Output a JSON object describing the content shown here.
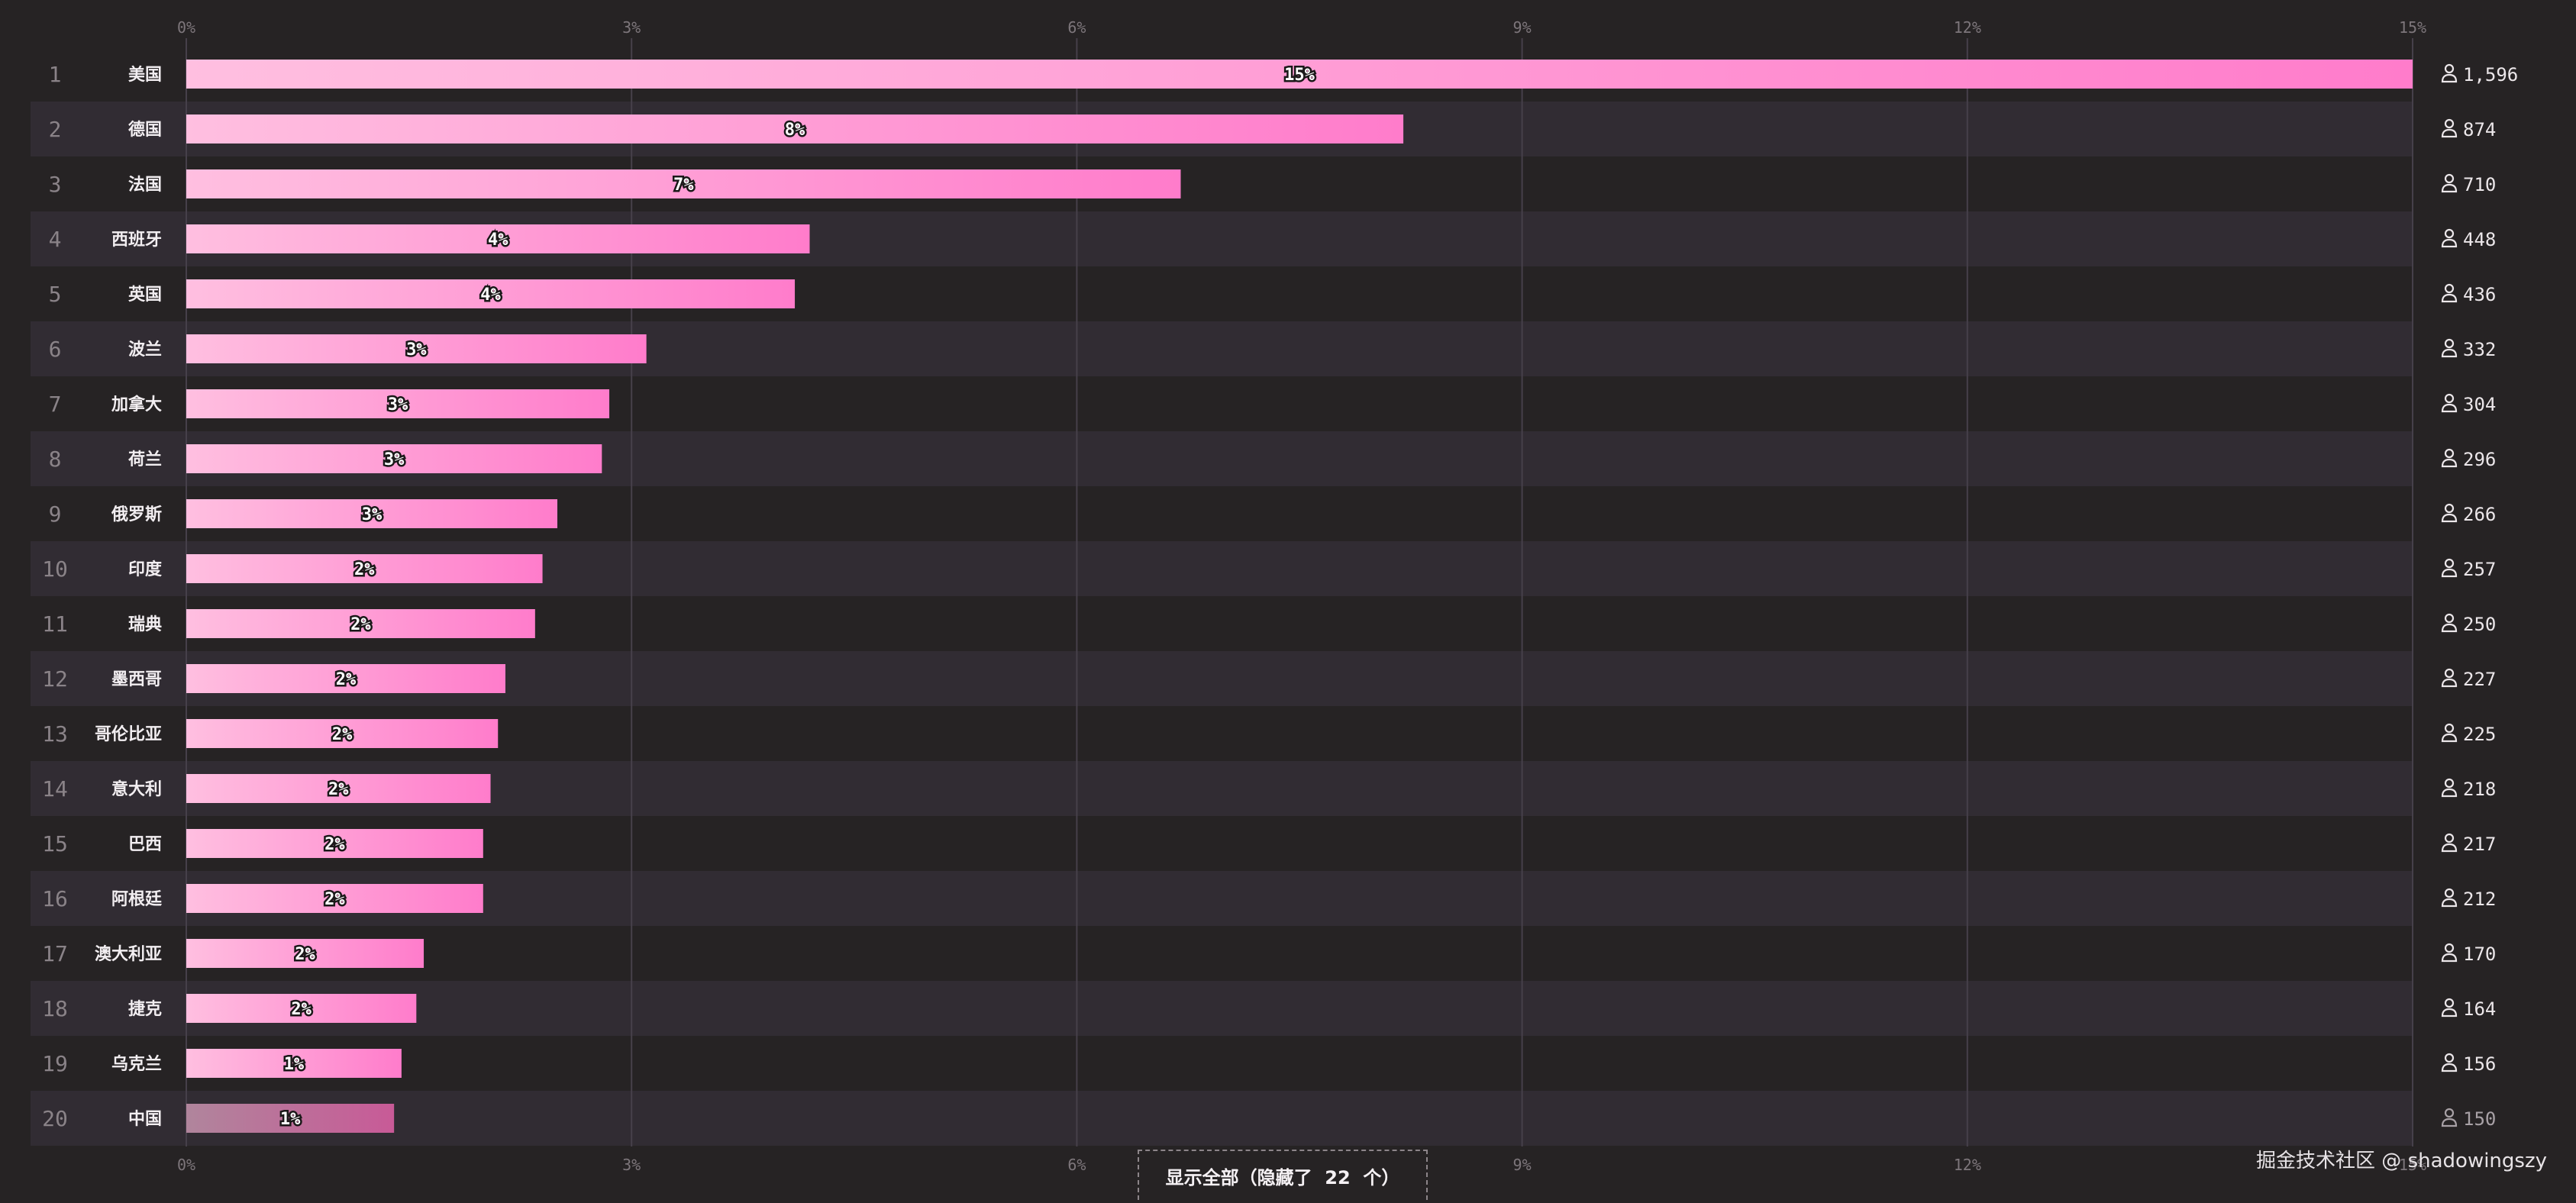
{
  "chart_data": {
    "type": "bar",
    "orientation": "horizontal",
    "xlim": [
      0,
      15
    ],
    "x_ticks": [
      "0%",
      "3%",
      "6%",
      "9%",
      "12%",
      "15%"
    ],
    "x_tick_values": [
      0,
      3,
      6,
      9,
      12,
      15
    ],
    "grid": true,
    "categories": [
      "美国",
      "德国",
      "法国",
      "西班牙",
      "英国",
      "波兰",
      "加拿大",
      "荷兰",
      "俄罗斯",
      "印度",
      "瑞典",
      "墨西哥",
      "哥伦比亚",
      "意大利",
      "巴西",
      "阿根廷",
      "澳大利亚",
      "捷克",
      "乌克兰",
      "中国"
    ],
    "ranks": [
      "1",
      "2",
      "3",
      "4",
      "5",
      "6",
      "7",
      "8",
      "9",
      "10",
      "11",
      "12",
      "13",
      "14",
      "15",
      "16",
      "17",
      "18",
      "19",
      "20"
    ],
    "values": [
      15.0,
      8.2,
      6.7,
      4.2,
      4.1,
      3.1,
      2.85,
      2.8,
      2.5,
      2.4,
      2.35,
      2.15,
      2.1,
      2.05,
      2.0,
      2.0,
      1.6,
      1.55,
      1.45,
      1.4
    ],
    "value_labels": [
      "15%",
      "8%",
      "7%",
      "4%",
      "4%",
      "3%",
      "3%",
      "3%",
      "3%",
      "2%",
      "2%",
      "2%",
      "2%",
      "2%",
      "2%",
      "2%",
      "2%",
      "2%",
      "1%",
      "1%"
    ],
    "counts": [
      "1,596",
      "874",
      "710",
      "448",
      "436",
      "332",
      "304",
      "296",
      "266",
      "257",
      "250",
      "227",
      "225",
      "218",
      "217",
      "212",
      "170",
      "164",
      "156",
      "150"
    ],
    "highlighted_category": "中国",
    "colors": {
      "bar_start": "#ffbfe0",
      "bar_end": "#ff7ccb",
      "bar_highlight_start": "#b0859c",
      "bar_highlight_end": "#c85a97",
      "band": "#312c33",
      "background": "#262324"
    },
    "count_icon": "user-icon"
  },
  "footer": {
    "show_all_label": "显示全部（隐藏了  22  个）",
    "watermark": "掘金技术社区 @ shadowingszy"
  }
}
